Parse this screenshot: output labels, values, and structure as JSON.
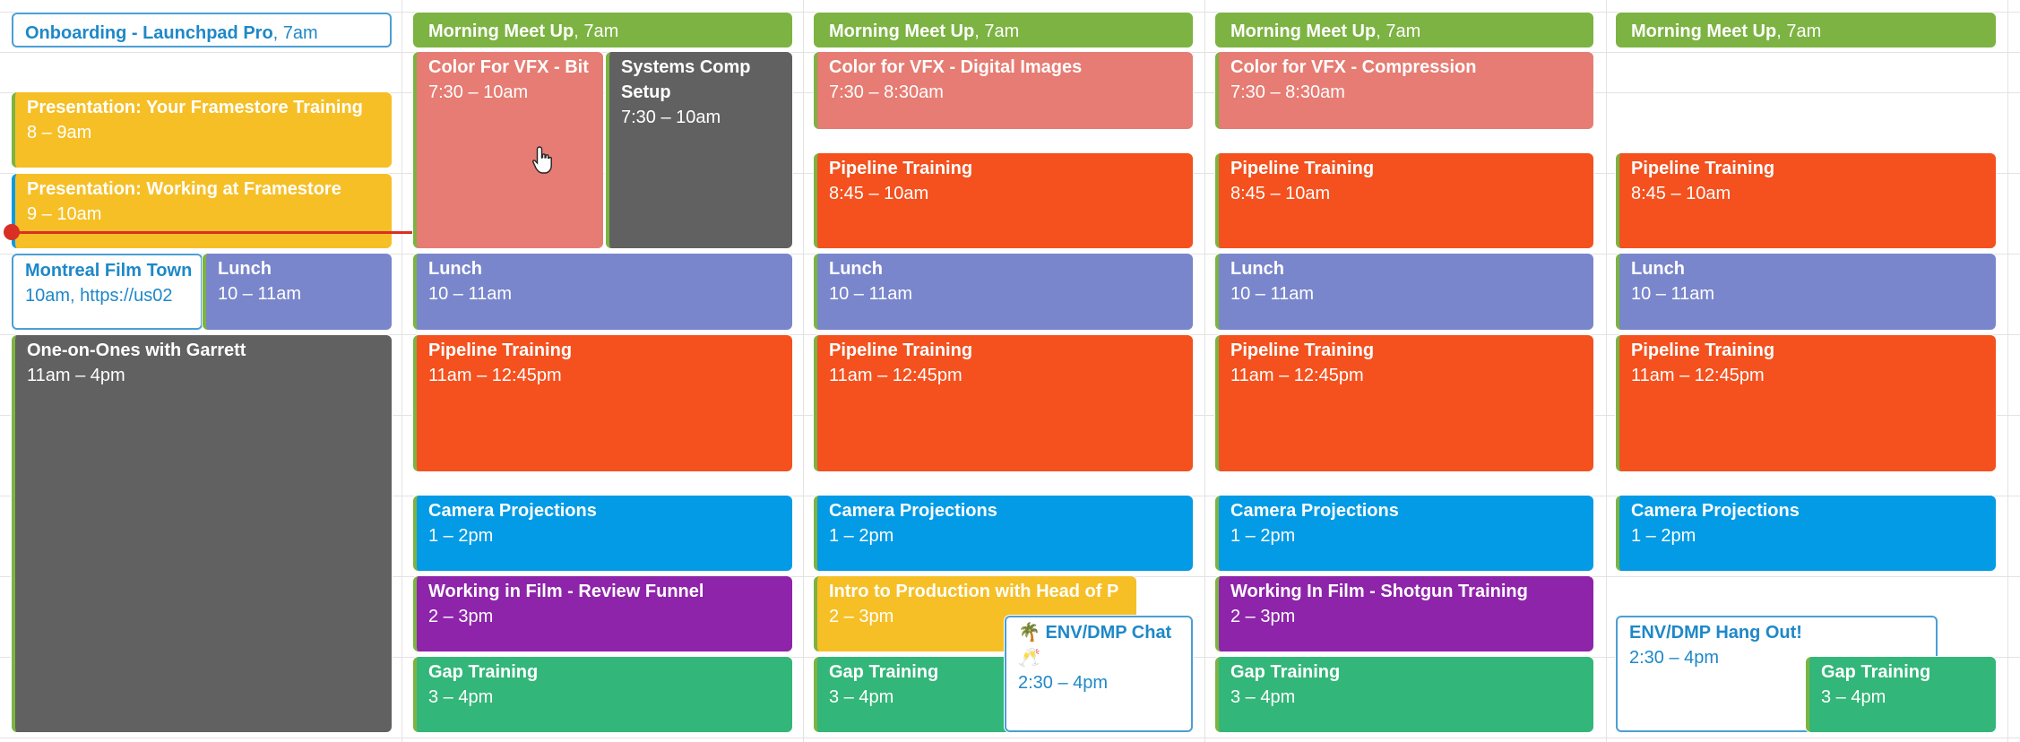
{
  "days": [
    {
      "events": [
        {
          "title": "Onboarding - Launchpad Pro",
          "time": "7am",
          "color": "#ffffff",
          "kind": "outline compact"
        },
        {
          "title": "Presentation: Your Framestore Training",
          "time": "8 – 9am",
          "color": "#F6BF26"
        },
        {
          "title": "Presentation: Working at Framestore",
          "time": "9 – 10am",
          "color": "#F6BF26",
          "stripe": "#039BE5"
        },
        {
          "title": "Montreal Film Town",
          "time": "10am, https://us02",
          "color": "#ffffff",
          "kind": "outline"
        },
        {
          "title": "Lunch",
          "time": "10 – 11am",
          "color": "#7986CB"
        },
        {
          "title": "One-on-Ones with Garrett",
          "time": "11am – 4pm",
          "color": "#616161"
        }
      ]
    },
    {
      "events": [
        {
          "title": "Morning Meet Up",
          "time": "7am",
          "color": "#7CB342",
          "kind": "compact"
        },
        {
          "title": "Color For VFX - Bit",
          "time": "7:30 – 10am",
          "color": "#E67C73"
        },
        {
          "title": "Systems Comp Setup",
          "time": "7:30 – 10am",
          "color": "#616161",
          "kind": "wrap"
        },
        {
          "title": "Lunch",
          "time": "10 – 11am",
          "color": "#7986CB"
        },
        {
          "title": "Pipeline Training",
          "time": "11am – 12:45pm",
          "color": "#F4511E"
        },
        {
          "title": "Camera Projections",
          "time": "1 – 2pm",
          "color": "#039BE5"
        },
        {
          "title": "Working in Film - Review Funnel",
          "time": "2 – 3pm",
          "color": "#8E24AA"
        },
        {
          "title": "Gap Training",
          "time": "3 – 4pm",
          "color": "#33B679"
        }
      ]
    },
    {
      "events": [
        {
          "title": "Morning Meet Up",
          "time": "7am",
          "color": "#7CB342",
          "kind": "compact"
        },
        {
          "title": "Color for VFX - Digital Images",
          "time": "7:30 – 8:30am",
          "color": "#E67C73"
        },
        {
          "title": "Pipeline Training",
          "time": "8:45 – 10am",
          "color": "#F4511E"
        },
        {
          "title": "Lunch",
          "time": "10 – 11am",
          "color": "#7986CB"
        },
        {
          "title": "Pipeline Training",
          "time": "11am – 12:45pm",
          "color": "#F4511E"
        },
        {
          "title": "Camera Projections",
          "time": "1 – 2pm",
          "color": "#039BE5"
        },
        {
          "title": "Intro to Production with Head of P",
          "time": "2 – 3pm",
          "color": "#F6BF26"
        },
        {
          "title": "Gap Training",
          "time": "3 – 4pm",
          "color": "#33B679"
        },
        {
          "title": "🌴 ENV/DMP Chat 🥂",
          "time": "2:30 – 4pm",
          "color": "#ffffff",
          "kind": "outline wrap"
        }
      ]
    },
    {
      "events": [
        {
          "title": "Morning Meet Up",
          "time": "7am",
          "color": "#7CB342",
          "kind": "compact"
        },
        {
          "title": "Color for VFX - Compression",
          "time": "7:30 – 8:30am",
          "color": "#E67C73"
        },
        {
          "title": "Pipeline Training",
          "time": "8:45 – 10am",
          "color": "#F4511E"
        },
        {
          "title": "Lunch",
          "time": "10 – 11am",
          "color": "#7986CB"
        },
        {
          "title": "Pipeline Training",
          "time": "11am – 12:45pm",
          "color": "#F4511E"
        },
        {
          "title": "Camera Projections",
          "time": "1 – 2pm",
          "color": "#039BE5"
        },
        {
          "title": "Working In Film - Shotgun Training",
          "time": "2 – 3pm",
          "color": "#8E24AA"
        },
        {
          "title": "Gap Training",
          "time": "3 – 4pm",
          "color": "#33B679"
        }
      ]
    },
    {
      "events": [
        {
          "title": "Morning Meet Up",
          "time": "7am",
          "color": "#7CB342",
          "kind": "compact"
        },
        {
          "title": "Pipeline Training",
          "time": "8:45 – 10am",
          "color": "#F4511E"
        },
        {
          "title": "Lunch",
          "time": "10 – 11am",
          "color": "#7986CB"
        },
        {
          "title": "Pipeline Training",
          "time": "11am – 12:45pm",
          "color": "#F4511E"
        },
        {
          "title": "Camera Projections",
          "time": "1 – 2pm",
          "color": "#039BE5"
        },
        {
          "title": "ENV/DMP Hang Out!",
          "time": "2:30 – 4pm",
          "color": "#ffffff",
          "kind": "outline"
        },
        {
          "title": "Gap Training",
          "time": "3 – 4pm",
          "color": "#33B679"
        }
      ]
    }
  ],
  "current_time_indicator_color": "#D93025"
}
